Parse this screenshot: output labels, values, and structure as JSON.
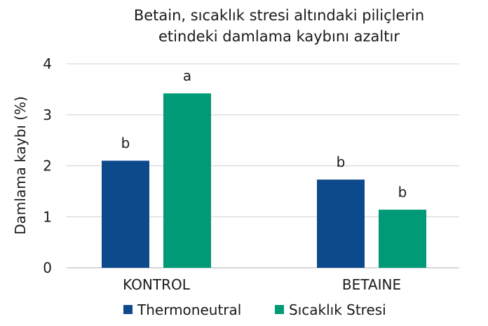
{
  "chart_data": {
    "type": "bar",
    "title_lines": [
      "Betain, sıcaklık stresi altındaki piliçlerin",
      "etindeki damlama kaybını azaltır"
    ],
    "xlabel": "",
    "ylabel": "Damlama kaybı (%)",
    "ylim": [
      0,
      4
    ],
    "yticks": [
      "0",
      "1",
      "2",
      "3",
      "4"
    ],
    "grid": true,
    "legend_position": "bottom",
    "categories": [
      "KONTROL",
      "BETAINE"
    ],
    "series": [
      {
        "name": "Thermoneutral",
        "color": "#0d4a8c",
        "values": [
          2.1,
          1.73
        ],
        "labels": [
          "b",
          "b"
        ]
      },
      {
        "name": "Sıcaklık Stresi",
        "color": "#009b76",
        "values": [
          3.42,
          1.14
        ],
        "labels": [
          "a",
          "b"
        ]
      }
    ]
  }
}
